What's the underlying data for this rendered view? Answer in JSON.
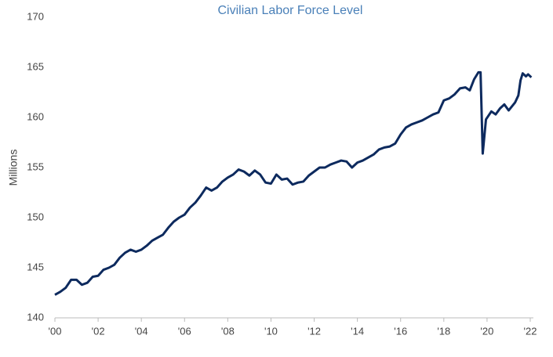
{
  "chart_data": {
    "type": "line",
    "title": "Civilian Labor Force Level",
    "y_label": "Millions",
    "x": [
      2000.0,
      2000.25,
      2000.5,
      2000.75,
      2001.0,
      2001.25,
      2001.5,
      2001.75,
      2002.0,
      2002.25,
      2002.5,
      2002.75,
      2003.0,
      2003.25,
      2003.5,
      2003.75,
      2004.0,
      2004.25,
      2004.5,
      2004.75,
      2005.0,
      2005.25,
      2005.5,
      2005.75,
      2006.0,
      2006.25,
      2006.5,
      2006.75,
      2007.0,
      2007.25,
      2007.5,
      2007.75,
      2008.0,
      2008.25,
      2008.5,
      2008.75,
      2009.0,
      2009.25,
      2009.5,
      2009.75,
      2010.0,
      2010.25,
      2010.5,
      2010.75,
      2011.0,
      2011.25,
      2011.5,
      2011.75,
      2012.0,
      2012.25,
      2012.5,
      2012.75,
      2013.0,
      2013.25,
      2013.5,
      2013.75,
      2014.0,
      2014.25,
      2014.5,
      2014.75,
      2015.0,
      2015.25,
      2015.5,
      2015.75,
      2016.0,
      2016.25,
      2016.5,
      2016.75,
      2017.0,
      2017.25,
      2017.5,
      2017.75,
      2018.0,
      2018.25,
      2018.5,
      2018.75,
      2019.0,
      2019.2,
      2019.4,
      2019.6,
      2019.7,
      2019.8,
      2019.95,
      2020.2,
      2020.4,
      2020.6,
      2020.8,
      2021.0,
      2021.3,
      2021.45,
      2021.55,
      2021.65,
      2021.8,
      2021.9,
      2022.05
    ],
    "series": [
      {
        "name": "Civilian Labor Force Level",
        "color": "#0d2a5e",
        "values": [
          142.3,
          142.6,
          143.0,
          143.8,
          143.8,
          143.3,
          143.5,
          144.1,
          144.2,
          144.8,
          145.0,
          145.3,
          146.0,
          146.5,
          146.8,
          146.6,
          146.8,
          147.2,
          147.7,
          148.0,
          148.3,
          149.0,
          149.6,
          150.0,
          150.3,
          151.0,
          151.5,
          152.2,
          153.0,
          152.7,
          153.0,
          153.6,
          154.0,
          154.3,
          154.8,
          154.6,
          154.2,
          154.7,
          154.3,
          153.5,
          153.4,
          154.3,
          153.8,
          153.9,
          153.3,
          153.5,
          153.6,
          154.2,
          154.6,
          155.0,
          155.0,
          155.3,
          155.5,
          155.7,
          155.6,
          155.0,
          155.5,
          155.7,
          156.0,
          156.3,
          156.8,
          157.0,
          157.1,
          157.4,
          158.3,
          159.0,
          159.3,
          159.5,
          159.7,
          160.0,
          160.3,
          160.5,
          161.7,
          161.9,
          162.3,
          162.9,
          163.0,
          162.7,
          163.8,
          164.5,
          164.5,
          156.4,
          159.8,
          160.6,
          160.3,
          160.9,
          161.3,
          160.7,
          161.5,
          162.2,
          163.7,
          164.4,
          164.1,
          164.3,
          164.0
        ]
      }
    ],
    "xlim": [
      2000,
      2022
    ],
    "xticks": [
      {
        "value": 2000,
        "label": "'00"
      },
      {
        "value": 2002,
        "label": "'02"
      },
      {
        "value": 2004,
        "label": "'04"
      },
      {
        "value": 2006,
        "label": "'06"
      },
      {
        "value": 2008,
        "label": "'08"
      },
      {
        "value": 2010,
        "label": "'10"
      },
      {
        "value": 2012,
        "label": "'12"
      },
      {
        "value": 2014,
        "label": "'14"
      },
      {
        "value": 2016,
        "label": "'16"
      },
      {
        "value": 2018,
        "label": "'18"
      },
      {
        "value": 2020,
        "label": "'20"
      },
      {
        "value": 2022,
        "label": "'22"
      }
    ],
    "ylim": [
      140,
      170
    ],
    "yticks": [
      140,
      145,
      150,
      155,
      160,
      165,
      170
    ],
    "grid": false
  }
}
